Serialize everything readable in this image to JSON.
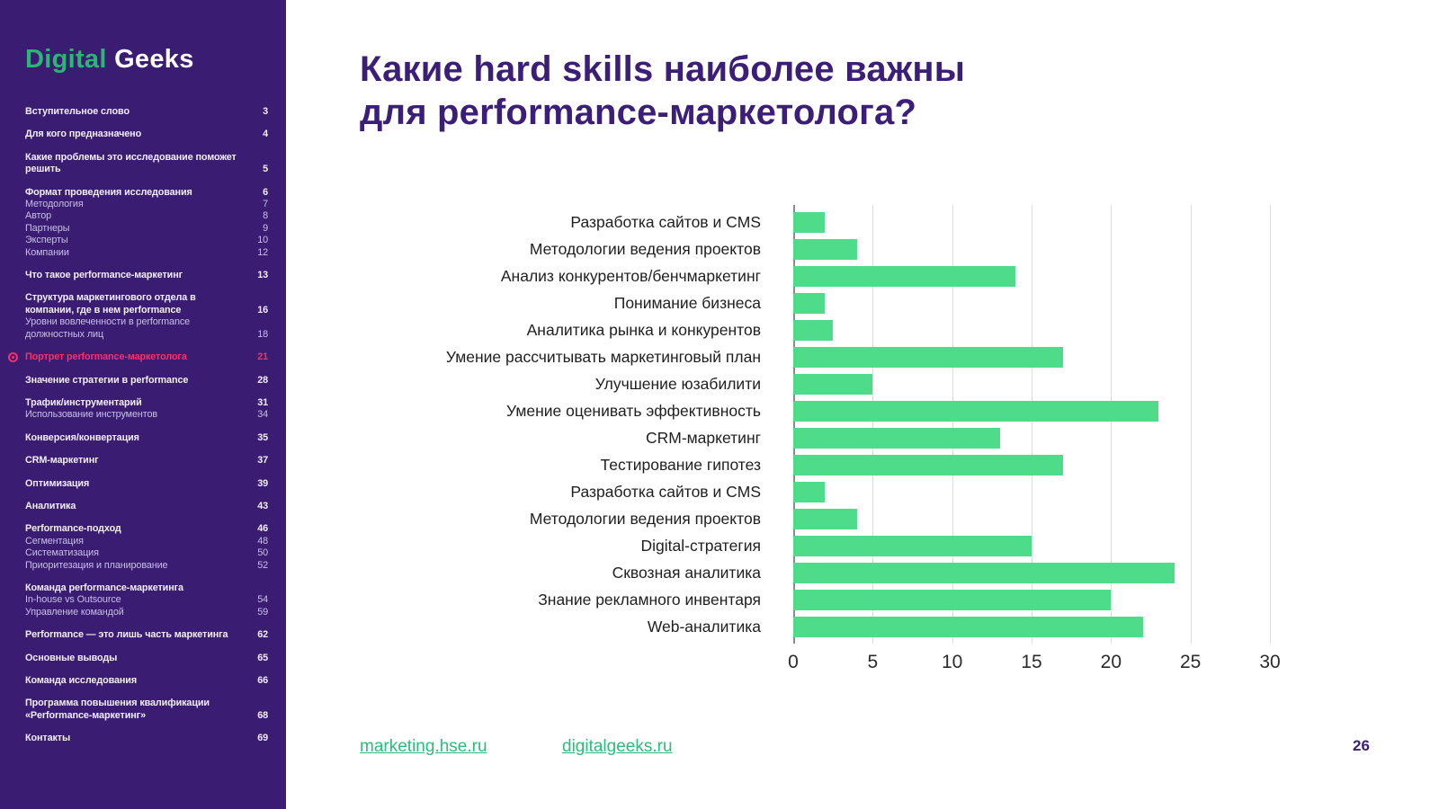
{
  "sidebar": {
    "logo": {
      "part1": "Digital",
      "part2": " Geeks"
    },
    "groups": [
      {
        "items": [
          {
            "label": "Вступительное слово",
            "page": "3",
            "bold": true
          }
        ]
      },
      {
        "items": [
          {
            "label": "Для кого предназначено",
            "page": "4",
            "bold": true
          }
        ]
      },
      {
        "items": [
          {
            "label": "Какие проблемы это исследование поможет решить",
            "page": "5",
            "bold": true
          }
        ]
      },
      {
        "items": [
          {
            "label": "Формат проведения исследования",
            "page": "6",
            "bold": true
          },
          {
            "label": "Методология",
            "page": "7",
            "bold": false
          },
          {
            "label": "Автор",
            "page": "8",
            "bold": false
          },
          {
            "label": "Партнеры",
            "page": "9",
            "bold": false
          },
          {
            "label": "Эксперты",
            "page": "10",
            "bold": false
          },
          {
            "label": "Компании",
            "page": "12",
            "bold": false
          }
        ]
      },
      {
        "items": [
          {
            "label": "Что такое performance-маркетинг",
            "page": "13",
            "bold": true
          }
        ]
      },
      {
        "items": [
          {
            "label": "Структура маркетингового отдела в компании, где в нем performance",
            "page": "16",
            "bold": true
          },
          {
            "label": "Уровни вовлеченности в performance должностных лиц",
            "page": "18",
            "bold": false
          }
        ]
      },
      {
        "items": [
          {
            "label": "Портрет performance-маркетолога",
            "page": "21",
            "bold": true,
            "active": true
          }
        ]
      },
      {
        "items": [
          {
            "label": "Значение стратегии в performance",
            "page": "28",
            "bold": true
          }
        ]
      },
      {
        "items": [
          {
            "label": "Трафик/инструментарий",
            "page": "31",
            "bold": true
          },
          {
            "label": "Использование инструментов",
            "page": "34",
            "bold": false
          }
        ]
      },
      {
        "items": [
          {
            "label": "Конверсия/конвертация",
            "page": "35",
            "bold": true
          }
        ]
      },
      {
        "items": [
          {
            "label": "CRM-маркетинг",
            "page": "37",
            "bold": true
          }
        ]
      },
      {
        "items": [
          {
            "label": "Оптимизация",
            "page": "39",
            "bold": true
          }
        ]
      },
      {
        "items": [
          {
            "label": "Аналитика",
            "page": "43",
            "bold": true
          }
        ]
      },
      {
        "items": [
          {
            "label": "Performance-подход",
            "page": "46",
            "bold": true
          },
          {
            "label": "Сегментация",
            "page": "48",
            "bold": false
          },
          {
            "label": "Систематизация",
            "page": "50",
            "bold": false
          },
          {
            "label": "Приоритезация и планирование",
            "page": "52",
            "bold": false
          }
        ]
      },
      {
        "items": [
          {
            "label": "Команда performance-маркетинга",
            "page": "",
            "bold": true
          },
          {
            "label": "In-house vs Outsource",
            "page": "54",
            "bold": false
          },
          {
            "label": "Управление командой",
            "page": "59",
            "bold": false
          }
        ]
      },
      {
        "items": [
          {
            "label": "Performance — это лишь часть маркетинга",
            "page": "62",
            "bold": true
          }
        ]
      },
      {
        "items": [
          {
            "label": "Основные выводы",
            "page": "65",
            "bold": true
          }
        ]
      },
      {
        "items": [
          {
            "label": "Команда исследования",
            "page": "66",
            "bold": true
          }
        ]
      },
      {
        "items": [
          {
            "label": "Программа повышения квалификации «Performance-маркетинг»",
            "page": "68",
            "bold": true
          }
        ]
      },
      {
        "items": [
          {
            "label": "Контакты",
            "page": "69",
            "bold": true
          }
        ]
      }
    ]
  },
  "main": {
    "title_line1": "Какие hard skills наиболее важны",
    "title_line2": "для performance-маркетолога?",
    "footer": {
      "link1": "marketing.hse.ru",
      "link2": "digitalgeeks.ru",
      "page_number": "26"
    }
  },
  "chart_data": {
    "type": "bar",
    "orientation": "horizontal",
    "title": "Какие hard skills наиболее важны для performance-маркетолога?",
    "categories": [
      "Разработка сайтов и CMS",
      "Методологии ведения проектов",
      "Анализ конкурентов/бенчмаркетинг",
      "Понимание бизнеса",
      "Аналитика рынка и конкурентов",
      "Умение рассчитывать маркетинговый план",
      "Улучшение юзабилити",
      "Умение оценивать эффективность",
      "CRM-маркетинг",
      "Тестирование гипотез",
      "Разработка сайтов и CMS",
      "Методологии ведения проектов",
      "Digital-стратегия",
      "Сквозная аналитика",
      "Знание рекламного инвентаря",
      "Web-аналитика"
    ],
    "values": [
      2,
      4,
      14,
      2,
      2.5,
      17,
      5,
      23,
      13,
      17,
      2,
      4,
      15,
      24,
      20,
      22
    ],
    "xlabel": "",
    "ylabel": "",
    "xlim": [
      0,
      30
    ],
    "xticks": [
      0,
      5,
      10,
      15,
      20,
      25,
      30
    ],
    "grid": true,
    "legend": false,
    "bar_color": "#4edc8a"
  },
  "colors": {
    "sidebar_bg": "#3a1d73",
    "logo_green": "#2bb673",
    "title_purple": "#3b1e78",
    "active_pink": "#ff2d68",
    "bar_green": "#4edc8a",
    "link_green": "#2bbd7a"
  }
}
